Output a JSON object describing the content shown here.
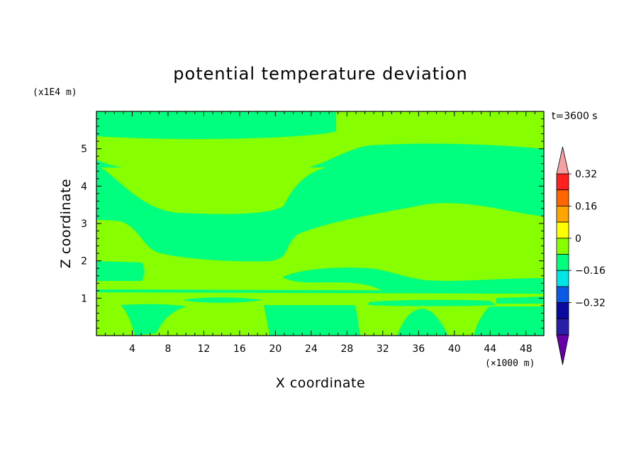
{
  "chart_data": {
    "type": "heatmap",
    "title": "potential temperature deviation",
    "xlabel": "X coordinate",
    "ylabel": "Z coordinate",
    "x_unit": "(×1000 m)",
    "y_unit": "(x1E4 m)",
    "time_label": "t=3600 s",
    "xlim": [
      0,
      50
    ],
    "ylim": [
      0,
      6
    ],
    "x_ticks": [
      4,
      8,
      12,
      16,
      20,
      24,
      28,
      32,
      36,
      40,
      44,
      48
    ],
    "y_ticks": [
      1,
      2,
      3,
      4,
      5
    ],
    "colorbar": {
      "labels": [
        {
          "text": "0.32",
          "value": 0.32
        },
        {
          "text": "0.16",
          "value": 0.16
        },
        {
          "text": "0",
          "value": 0
        },
        {
          "text": "−0.16",
          "value": -0.16
        },
        {
          "text": "−0.32",
          "value": -0.32
        }
      ],
      "levels": [
        -0.4,
        -0.32,
        -0.24,
        -0.16,
        -0.08,
        0,
        0.08,
        0.16,
        0.24,
        0.32,
        0.4
      ],
      "colors": [
        "#6600aa",
        "#2a1fa8",
        "#0a0aa0",
        "#0a5ae6",
        "#00e6e6",
        "#00ff7f",
        "#88ff00",
        "#ffff00",
        "#ffa500",
        "#ff6600",
        "#ff2020",
        "#f4a0a0"
      ]
    },
    "field_colors": {
      "positive_small": "#88ff00",
      "negative_small": "#00ff7f"
    }
  }
}
